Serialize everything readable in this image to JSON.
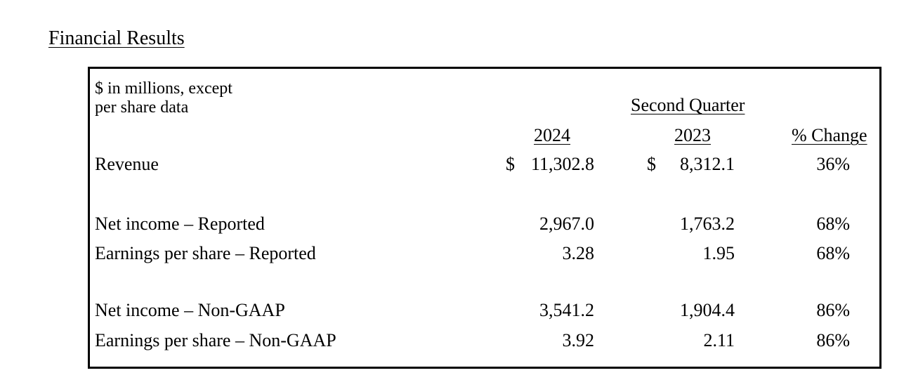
{
  "heading": "Financial Results",
  "table": {
    "units_line1": "$ in millions, except",
    "units_line2": "per share data",
    "group_header": "Second Quarter",
    "col_2024": "2024",
    "col_2023": "2023",
    "col_change": "% Change",
    "rows": [
      {
        "label": "Revenue",
        "cur_2024": "$",
        "v2024": "11,302.8",
        "cur_2023": "$",
        "v2023": "8,312.1",
        "change": "36%"
      },
      {
        "label": "Net income – Reported",
        "v2024": "2,967.0",
        "v2023": "1,763.2",
        "change": "68%"
      },
      {
        "label": "Earnings per share – Reported",
        "v2024": "3.28",
        "v2023": "1.95",
        "change": "68%"
      },
      {
        "label": "Net income – Non-GAAP",
        "v2024": "3,541.2",
        "v2023": "1,904.4",
        "change": "86%"
      },
      {
        "label": "Earnings per share – Non-GAAP",
        "v2024": "3.92",
        "v2023": "2.11",
        "change": "86%"
      }
    ]
  }
}
